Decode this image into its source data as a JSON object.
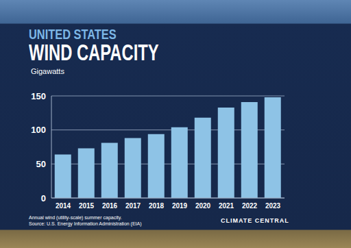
{
  "chart_data": {
    "type": "bar",
    "header": "UNITED STATES",
    "title": "WIND CAPACITY",
    "y_label": "Gigawatts",
    "categories": [
      "2014",
      "2015",
      "2016",
      "2017",
      "2018",
      "2019",
      "2020",
      "2021",
      "2022",
      "2023"
    ],
    "values": [
      64,
      73,
      81,
      88,
      94,
      104,
      118,
      133,
      141,
      148
    ],
    "color": "#8ec3e6",
    "ylim": [
      0,
      150
    ],
    "yticks": [
      0,
      50,
      100,
      150
    ],
    "grid": true,
    "notes": [
      "Annual wind (utility-scale) summer capacity.",
      "Source: U.S. Energy Information Administration (EIA)"
    ],
    "logo": "CLIMATE CENTRAL"
  }
}
